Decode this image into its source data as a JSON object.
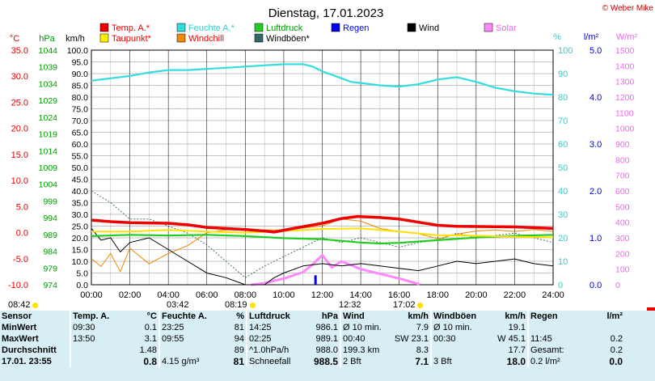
{
  "title": "Dienstag, 17.01.2023",
  "copyright": "© Weber Mike",
  "legend": [
    {
      "name": "Temp. A.*",
      "color": "#ee0000",
      "text": "#ee0000"
    },
    {
      "name": "Feuchte A.*",
      "color": "#33dddd",
      "text": "#33cccc"
    },
    {
      "name": "Luftdruck",
      "color": "#22cc22",
      "text": "#009900"
    },
    {
      "name": "Regen",
      "color": "#0000ee",
      "text": "#0000ee"
    },
    {
      "name": "Wind",
      "color": "#000000",
      "text": "#000000"
    },
    {
      "name": "Solar",
      "color": "#ff88ff",
      "text": "#ee66ee"
    },
    {
      "name": "Taupunkt*",
      "color": "#ffee00",
      "text": "#ee0000"
    },
    {
      "name": "Windchill",
      "color": "#ee8800",
      "text": "#ee0000"
    },
    {
      "name": "Windböen*",
      "color": "#336666",
      "text": "#000000"
    }
  ],
  "axis_units": {
    "temp": "°C",
    "pressure": "hPa",
    "wind": "km/h",
    "humidity": "%",
    "rain": "l/m²",
    "solar": "W/m²"
  },
  "sun_times": {
    "sunrise": "08:42",
    "sunset": "17:02",
    "noon": "12:32",
    "rise_marker": "08:19",
    "moon_rise": "03:42"
  },
  "chart_data": {
    "type": "line",
    "x_ticks": [
      "00:00",
      "02:00",
      "04:00",
      "06:00",
      "08:00",
      "10:00",
      "12:00",
      "14:00",
      "16:00",
      "18:00",
      "20:00",
      "22:00",
      "24:00"
    ],
    "axes": {
      "temp": {
        "range": [
          -10,
          35
        ],
        "ticks": [
          "35.0",
          "30.0",
          "25.0",
          "20.0",
          "15.0",
          "10.0",
          "5.0",
          "0.0",
          "-5.0",
          "-10.0"
        ]
      },
      "pressure": {
        "range": [
          974,
          1044
        ],
        "ticks": [
          "1044",
          "1039",
          "1034",
          "1029",
          "1024",
          "1019",
          "1014",
          "1009",
          "1004",
          "999",
          "994",
          "989",
          "984",
          "979",
          "974"
        ]
      },
      "wind": {
        "range": [
          0,
          100
        ],
        "ticks": [
          "100.0",
          "95.0",
          "90.0",
          "85.0",
          "80.0",
          "75.0",
          "70.0",
          "65.0",
          "60.0",
          "55.0",
          "50.0",
          "45.0",
          "40.0",
          "35.0",
          "30.0",
          "25.0",
          "20.0",
          "15.0",
          "10.0",
          "5.0",
          "0.0"
        ]
      },
      "humidity": {
        "range": [
          0,
          100
        ],
        "ticks": [
          "100",
          "90",
          "80",
          "70",
          "60",
          "50",
          "40",
          "30",
          "20",
          "10",
          "0"
        ]
      },
      "rain": {
        "range": [
          0,
          5
        ],
        "ticks": [
          "5.0",
          "4.0",
          "3.0",
          "2.0",
          "1.0",
          "0.0"
        ]
      },
      "solar": {
        "range": [
          0,
          1500
        ],
        "ticks": [
          "1500",
          "1400",
          "1300",
          "1200",
          "1100",
          "1000",
          "900",
          "800",
          "700",
          "600",
          "500",
          "400",
          "300",
          "200",
          "100",
          "0"
        ]
      }
    },
    "series": [
      {
        "name": "Feuchte A.*",
        "axis": "humidity",
        "points": [
          [
            0,
            87
          ],
          [
            1,
            88
          ],
          [
            2,
            89
          ],
          [
            3,
            90.5
          ],
          [
            4,
            91.5
          ],
          [
            5,
            91.5
          ],
          [
            6,
            92
          ],
          [
            7,
            92.5
          ],
          [
            8,
            93
          ],
          [
            9,
            93.5
          ],
          [
            10,
            94
          ],
          [
            11,
            94
          ],
          [
            11.5,
            93
          ],
          [
            12,
            91
          ],
          [
            13,
            88
          ],
          [
            13.5,
            86.5
          ],
          [
            14,
            86
          ],
          [
            15,
            85
          ],
          [
            16,
            84.5
          ],
          [
            17,
            85.5
          ],
          [
            18,
            87.5
          ],
          [
            19,
            88.5
          ],
          [
            20,
            86.5
          ],
          [
            21,
            84
          ],
          [
            22,
            82.5
          ],
          [
            23,
            81.5
          ],
          [
            24,
            81
          ]
        ]
      },
      {
        "name": "Temp. A.*",
        "axis": "temp",
        "points": [
          [
            0,
            2.4
          ],
          [
            1,
            2.1
          ],
          [
            2,
            1.9
          ],
          [
            4,
            1.8
          ],
          [
            5,
            1.5
          ],
          [
            6,
            1.0
          ],
          [
            8,
            0.6
          ],
          [
            9,
            0.3
          ],
          [
            9.5,
            0.1
          ],
          [
            10.5,
            0.8
          ],
          [
            12,
            1.8
          ],
          [
            13,
            2.7
          ],
          [
            13.83,
            3.1
          ],
          [
            15,
            2.9
          ],
          [
            16,
            2.6
          ],
          [
            17,
            2.0
          ],
          [
            18,
            1.4
          ],
          [
            19,
            1.2
          ],
          [
            22,
            1.1
          ],
          [
            24,
            0.8
          ]
        ]
      },
      {
        "name": "Taupunkt*",
        "axis": "temp",
        "points": [
          [
            0,
            0.2
          ],
          [
            2,
            0.2
          ],
          [
            4,
            0.5
          ],
          [
            6,
            0.2
          ],
          [
            8,
            0.0
          ],
          [
            10,
            0.3
          ],
          [
            12,
            0.7
          ],
          [
            14,
            0.8
          ],
          [
            16,
            0.2
          ],
          [
            18,
            -0.5
          ],
          [
            20,
            -0.6
          ],
          [
            22,
            -0.8
          ],
          [
            24,
            -0.9
          ]
        ]
      },
      {
        "name": "Luftdruck",
        "axis": "pressure",
        "points": [
          [
            0,
            988.5
          ],
          [
            2,
            988.9
          ],
          [
            4,
            988.7
          ],
          [
            6,
            988.9
          ],
          [
            8,
            988.5
          ],
          [
            10,
            987.9
          ],
          [
            12,
            987.6
          ],
          [
            14,
            986.6
          ],
          [
            15,
            986.3
          ],
          [
            16,
            986.5
          ],
          [
            18,
            987.3
          ],
          [
            20,
            988.1
          ],
          [
            22,
            988.6
          ],
          [
            24,
            988.9
          ]
        ]
      },
      {
        "name": "Wind",
        "axis": "wind",
        "points": [
          [
            0,
            24
          ],
          [
            0.5,
            19
          ],
          [
            1,
            20
          ],
          [
            1.5,
            14
          ],
          [
            2,
            18
          ],
          [
            3,
            20
          ],
          [
            4,
            15
          ],
          [
            5,
            10
          ],
          [
            6,
            5
          ],
          [
            7,
            3
          ],
          [
            8,
            0
          ],
          [
            9,
            0
          ],
          [
            9.5,
            3
          ],
          [
            10,
            5
          ],
          [
            11,
            8
          ],
          [
            12,
            9
          ],
          [
            13,
            8
          ],
          [
            14,
            9
          ],
          [
            15,
            8
          ],
          [
            16,
            7
          ],
          [
            17,
            6
          ],
          [
            18,
            8
          ],
          [
            19,
            10
          ],
          [
            20,
            9
          ],
          [
            21,
            10
          ],
          [
            22,
            11
          ],
          [
            23,
            9
          ],
          [
            24,
            8
          ]
        ]
      },
      {
        "name": "Windböen*",
        "axis": "wind",
        "points": [
          [
            0,
            40
          ],
          [
            1,
            35
          ],
          [
            2,
            28
          ],
          [
            3,
            28
          ],
          [
            4,
            25
          ],
          [
            5,
            22
          ],
          [
            6,
            17
          ],
          [
            7,
            10
          ],
          [
            8,
            3
          ],
          [
            9,
            8
          ],
          [
            10,
            12
          ],
          [
            11,
            16
          ],
          [
            12,
            20
          ],
          [
            13,
            18
          ],
          [
            14,
            20
          ],
          [
            15,
            18
          ],
          [
            16,
            16
          ],
          [
            17,
            18
          ],
          [
            18,
            19
          ],
          [
            19,
            22
          ],
          [
            20,
            20
          ],
          [
            21,
            21
          ],
          [
            22,
            22
          ],
          [
            23,
            20
          ],
          [
            24,
            18
          ]
        ]
      },
      {
        "name": "Windchill",
        "axis": "temp",
        "points": [
          [
            0,
            -5
          ],
          [
            0.5,
            -6.5
          ],
          [
            1,
            -4
          ],
          [
            1.5,
            -7.5
          ],
          [
            2,
            -3
          ],
          [
            3,
            -6
          ],
          [
            4,
            -4
          ],
          [
            5,
            -2.5
          ],
          [
            6,
            0
          ],
          [
            7,
            0.5
          ],
          [
            8,
            0.5
          ],
          [
            10,
            0.5
          ],
          [
            12,
            1.3
          ],
          [
            13,
            2.6
          ],
          [
            14,
            2.2
          ],
          [
            15,
            0.8
          ],
          [
            16,
            0.2
          ],
          [
            17,
            -0.2
          ],
          [
            18,
            -1.2
          ],
          [
            19,
            -0.3
          ],
          [
            20,
            0.3
          ],
          [
            21,
            0.5
          ],
          [
            22,
            0.2
          ],
          [
            23,
            0.6
          ],
          [
            24,
            0.2
          ]
        ]
      },
      {
        "name": "Solar",
        "axis": "solar",
        "points": [
          [
            8.3,
            0
          ],
          [
            9,
            10
          ],
          [
            10,
            40
          ],
          [
            11,
            80
          ],
          [
            11.5,
            130
          ],
          [
            12,
            190
          ],
          [
            12.5,
            110
          ],
          [
            13,
            150
          ],
          [
            14,
            100
          ],
          [
            15,
            70
          ],
          [
            16,
            40
          ],
          [
            17,
            5
          ],
          [
            17.05,
            0
          ]
        ]
      }
    ],
    "rain_events": [
      {
        "x": 11.65,
        "y": 0.2
      }
    ]
  },
  "stats": {
    "headers": {
      "sensor": "Sensor",
      "temp": "Temp. A.",
      "temp_unit": "°C",
      "hum": "Feuchte A.",
      "hum_unit": "%",
      "press": "Luftdruck",
      "press_unit": "hPa",
      "wind": "Wind",
      "wind_unit": "km/h",
      "gust": "Windböen",
      "gust_unit": "km/h",
      "rain": "Regen",
      "rain_unit": "l/m²"
    },
    "rows": [
      {
        "label": "MinWert",
        "t_time": "09:30",
        "t_val": "0.1",
        "h_time": "23:25",
        "h_val": "81",
        "p_time": "14:25",
        "p_val": "986.1",
        "w_a": "Ø 10 min.",
        "w_b": "7.9",
        "g_a": "Ø 10 min.",
        "g_b": "19.1",
        "r_a": "",
        "r_b": ""
      },
      {
        "label": "MaxWert",
        "t_time": "13:50",
        "t_val": "3.1",
        "h_time": "09:55",
        "h_val": "94",
        "p_time": "02:25",
        "p_val": "989.1",
        "w_a": "00:40",
        "w_m": "SW 23.1",
        "w_b": "",
        "g_a": "00:30",
        "g_m": "W 45.1",
        "g_b": "",
        "r_a": "11:45",
        "r_b": "0.2"
      },
      {
        "label": "Durchschnitt",
        "t_time": "",
        "t_val": "1.48",
        "h_time": "",
        "h_val": "89",
        "p_time": "^1.0hPa/h",
        "p_val": "988.0",
        "w_a": "199.3 km",
        "w_b": "8.3",
        "g_a": "",
        "g_b": "17.7",
        "r_a": "Gesamt:",
        "r_b": "0.2"
      },
      {
        "label": "17.01. 23:55",
        "t_time": "",
        "t_val": "0.8",
        "h_time": "4.15 g/m³",
        "h_val": "81",
        "p_time": "Schneefall",
        "p_val": "988.5",
        "w_a": "2 Bft",
        "w_b": "7.1",
        "g_a": "3 Bft",
        "g_b": "18.0",
        "r_a": "0.2 l/m²",
        "r_b": "0.0"
      }
    ]
  }
}
